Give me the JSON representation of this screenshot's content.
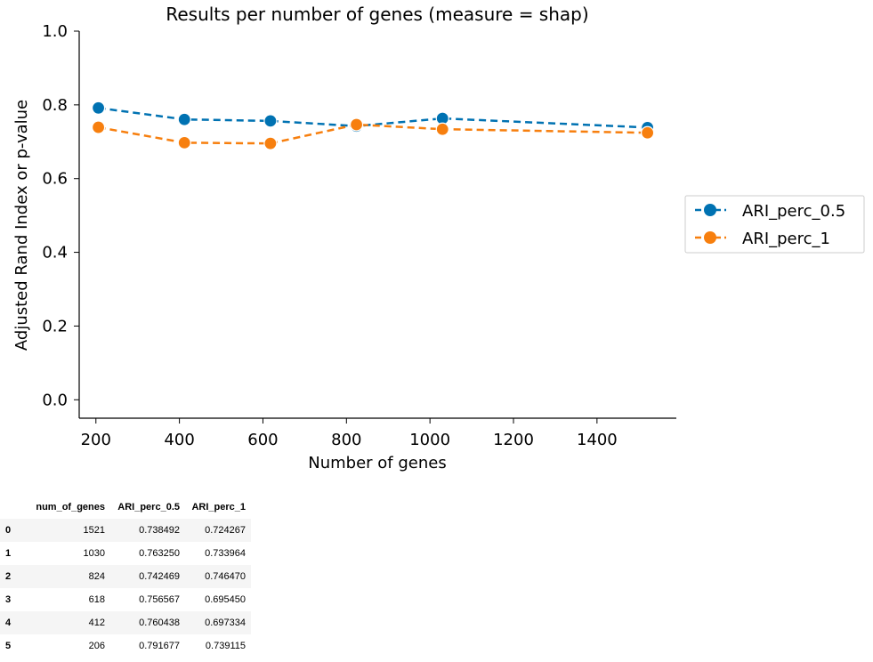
{
  "chart_data": {
    "type": "line",
    "title": "Results per number of genes (measure = shap)",
    "xlabel": "Number of genes",
    "ylabel": "Adjusted Rand Index  or  p-value",
    "xlim": [
      160,
      1590
    ],
    "ylim": [
      -0.05,
      1.0
    ],
    "x_ticks": [
      200,
      400,
      600,
      800,
      1000,
      1200,
      1400
    ],
    "y_ticks": [
      0.0,
      0.2,
      0.4,
      0.6,
      0.8,
      1.0
    ],
    "x_tick_labels": [
      "200",
      "400",
      "600",
      "800",
      "1000",
      "1200",
      "1400"
    ],
    "y_tick_labels": [
      "0.0",
      "0.2",
      "0.4",
      "0.6",
      "0.8",
      "1.0"
    ],
    "grid": false,
    "legend_position": "right, outside plot",
    "x": [
      206,
      412,
      618,
      824,
      1030,
      1521
    ],
    "series": [
      {
        "name": "ARI_perc_0.5",
        "color": "#0072b2",
        "values": [
          0.791677,
          0.760438,
          0.756567,
          0.742469,
          0.76325,
          0.738492
        ]
      },
      {
        "name": "ARI_perc_1",
        "color": "#f77f0e",
        "values": [
          0.739115,
          0.697334,
          0.69545,
          0.74647,
          0.733964,
          0.724267
        ]
      }
    ]
  },
  "table": {
    "columns": [
      "num_of_genes",
      "ARI_perc_0.5",
      "ARI_perc_1"
    ],
    "rows": [
      {
        "index": "0",
        "cells": [
          "1521",
          "0.738492",
          "0.724267"
        ]
      },
      {
        "index": "1",
        "cells": [
          "1030",
          "0.763250",
          "0.733964"
        ]
      },
      {
        "index": "2",
        "cells": [
          "824",
          "0.742469",
          "0.746470"
        ]
      },
      {
        "index": "3",
        "cells": [
          "618",
          "0.756567",
          "0.695450"
        ]
      },
      {
        "index": "4",
        "cells": [
          "412",
          "0.760438",
          "0.697334"
        ]
      },
      {
        "index": "5",
        "cells": [
          "206",
          "0.791677",
          "0.739115"
        ]
      }
    ]
  }
}
